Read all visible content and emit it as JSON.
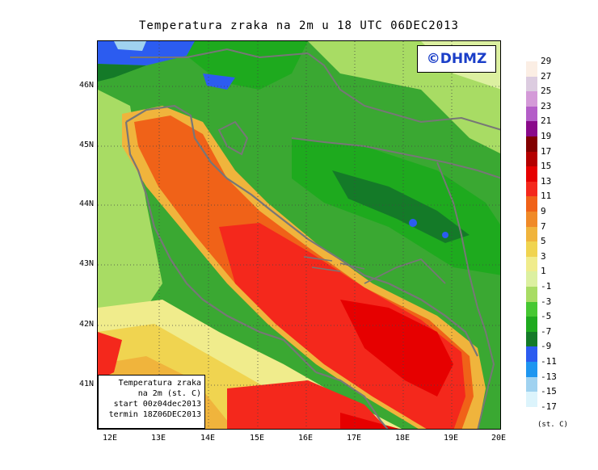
{
  "title": "Temperatura zraka na 2m u 18 UTC 06DEC2013",
  "logo": "©DHMZ",
  "info_box": {
    "line1": "Temperatura zraka",
    "line2": "na 2m (st. C)",
    "line3": "start 00z04dec2013",
    "line4": "termin 18Z06DEC2013"
  },
  "lat_labels": [
    "46N",
    "45N",
    "44N",
    "43N",
    "42N",
    "41N"
  ],
  "lon_labels": [
    "12E",
    "13E",
    "14E",
    "15E",
    "16E",
    "17E",
    "18E",
    "19E",
    "20E"
  ],
  "legend": {
    "levels": [
      "29",
      "27",
      "25",
      "23",
      "21",
      "19",
      "17",
      "15",
      "13",
      "11",
      "9",
      "7",
      "5",
      "3",
      "1",
      "-1",
      "-3",
      "-5",
      "-7",
      "-9",
      "-11",
      "-13",
      "-15",
      "-17"
    ],
    "colors": [
      "#fbeee4",
      "#dccce0",
      "#d49ad8",
      "#b45ec8",
      "#8a0a8a",
      "#820000",
      "#b40000",
      "#e60000",
      "#f4281c",
      "#f06218",
      "#f08a28",
      "#f0b43c",
      "#f0d450",
      "#f0ec8c",
      "#dcf0a0",
      "#a8dc64",
      "#46c832",
      "#1eaa1e",
      "#147a28",
      "#2c5cf0",
      "#1e96f0",
      "#a0d2f0",
      "#dcf4fc",
      "#ffffff"
    ],
    "unit": "(st. C)"
  }
}
